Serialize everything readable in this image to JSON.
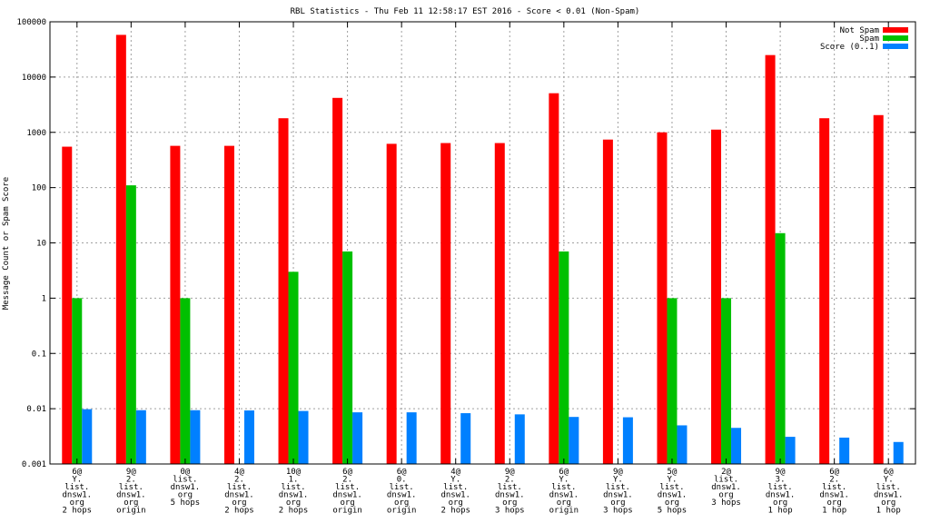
{
  "chart_data": {
    "type": "bar",
    "title": "RBL Statistics - Thu Feb 11 12:58:17 EST 2016 - Score < 0.01 (Non-Spam)",
    "xlabel": "",
    "ylabel": "Message Count or Spam Score",
    "y_scale": "log",
    "ylim": [
      0.001,
      100000
    ],
    "y_ticks": [
      "0.001",
      "0.01",
      "0.1",
      "1",
      "10",
      "100",
      "1000",
      "10000",
      "100000"
    ],
    "grid": true,
    "legend_position": "top-right",
    "categories": [
      [
        "6@",
        "Y.",
        "list.",
        "dnsw1.",
        "org",
        "2 hops"
      ],
      [
        "9@",
        "2.",
        "list.",
        "dnsw1.",
        "org",
        "origin"
      ],
      [
        "0@",
        "list.",
        "dnsw1.",
        "org",
        "5 hops"
      ],
      [
        "4@",
        "2.",
        "list.",
        "dnsw1.",
        "org",
        "2 hops"
      ],
      [
        "10@",
        "1.",
        "list.",
        "dnsw1.",
        "org",
        "2 hops"
      ],
      [
        "6@",
        "2.",
        "list.",
        "dnsw1.",
        "org",
        "origin"
      ],
      [
        "6@",
        "0.",
        "list.",
        "dnsw1.",
        "org",
        "origin"
      ],
      [
        "4@",
        "Y.",
        "list.",
        "dnsw1.",
        "org",
        "2 hops"
      ],
      [
        "9@",
        "2.",
        "list.",
        "dnsw1.",
        "org",
        "3 hops"
      ],
      [
        "6@",
        "Y.",
        "list.",
        "dnsw1.",
        "org",
        "origin"
      ],
      [
        "9@",
        "Y.",
        "list.",
        "dnsw1.",
        "org",
        "3 hops"
      ],
      [
        "5@",
        "Y.",
        "list.",
        "dnsw1.",
        "org",
        "5 hops"
      ],
      [
        "2@",
        "list.",
        "dnsw1.",
        "org",
        "3 hops"
      ],
      [
        "9@",
        "3.",
        "list.",
        "dnsw1.",
        "org",
        "1 hop"
      ],
      [
        "6@",
        "2.",
        "list.",
        "dnsw1.",
        "org",
        "1 hop"
      ],
      [
        "6@",
        "Y.",
        "list.",
        "dnsw1.",
        "org",
        "1 hop"
      ]
    ],
    "series": [
      {
        "name": "Not Spam",
        "color": "#ff0000",
        "values": [
          550,
          58000,
          570,
          570,
          1800,
          4200,
          620,
          640,
          640,
          5100,
          740,
          1000,
          1120,
          25000,
          1800,
          2050
        ]
      },
      {
        "name": "Spam",
        "color": "#00c000",
        "values": [
          1,
          110,
          1,
          null,
          3,
          7,
          null,
          null,
          null,
          7,
          null,
          1,
          1,
          15,
          null,
          null
        ]
      },
      {
        "name": "Score (0..1)",
        "color": "#0080ff",
        "values": [
          0.0098,
          0.0094,
          0.0094,
          0.0093,
          0.0091,
          0.0086,
          0.0086,
          0.0083,
          0.0079,
          0.0071,
          0.007,
          0.005,
          0.0045,
          0.0031,
          0.003,
          0.0025
        ]
      }
    ]
  }
}
